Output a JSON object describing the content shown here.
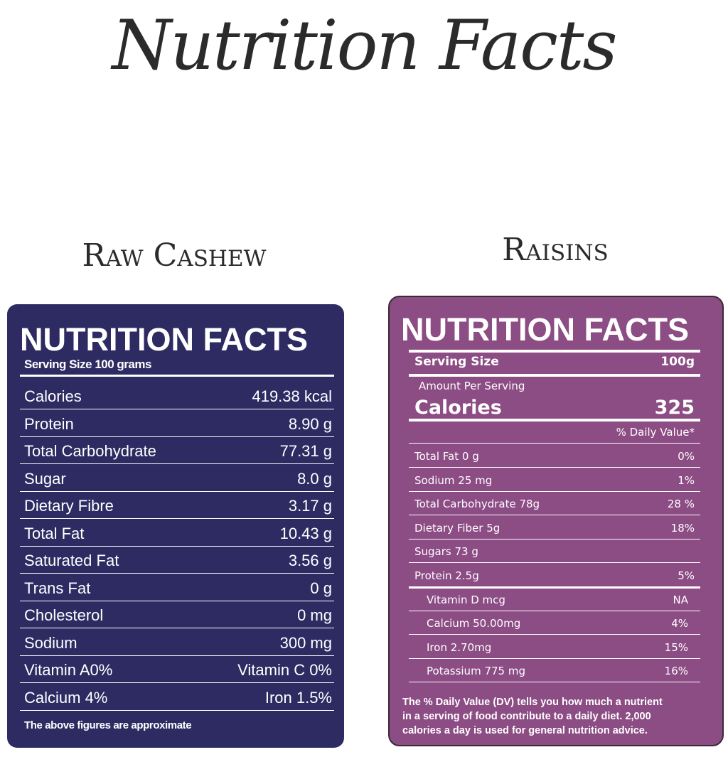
{
  "title": "Nutrition Facts",
  "panels": [
    {
      "name": "Raw Cashew",
      "heading": "NUTRITION FACTS",
      "serving": "Serving Size 100 grams",
      "rows": [
        [
          "Calories",
          "419.38 kcal"
        ],
        [
          "Protein",
          "8.90 g"
        ],
        [
          "Total Carbohydrate",
          "77.31 g"
        ],
        [
          "Sugar",
          "8.0 g"
        ],
        [
          "Dietary Fibre",
          "3.17 g"
        ],
        [
          "Total Fat",
          "10.43 g"
        ],
        [
          "Saturated Fat",
          "3.56 g"
        ],
        [
          "Trans Fat",
          "0 g"
        ],
        [
          "Cholesterol",
          "0 mg"
        ],
        [
          "Sodium",
          "300 mg"
        ],
        [
          "Vitamin A0%",
          "Vitamin C 0%"
        ],
        [
          "Calcium 4%",
          "Iron 1.5%"
        ]
      ],
      "footer": "The above figures are approximate"
    },
    {
      "name": "Raisins",
      "heading": "NUTRITION FACTS",
      "serving_label": "Serving Size",
      "serving_value": "100g",
      "amount_per_serving": "Amount Per Serving",
      "calories_label": "Calories",
      "calories_value": "325",
      "daily_value_header": "% Daily Value*",
      "rows": [
        [
          "Total Fat 0 g",
          "0%"
        ],
        [
          "Sodium 25 mg",
          "1%"
        ],
        [
          "Total Carbohydrate  78g",
          "28 %"
        ],
        [
          "Dietary Fiber 5g",
          "18%"
        ],
        [
          "Sugars  73 g"
        ],
        [
          "Protein   2.5g",
          "5%"
        ],
        [
          "Vitamin D mcg",
          "NA"
        ],
        [
          "Calcium 50.00mg",
          "4%"
        ],
        [
          "Iron 2.70mg",
          "15%"
        ],
        [
          "Potassium 775 mg",
          "16%"
        ]
      ],
      "footer": [
        "The % Daily Value (DV) tells you how much a nutrient",
        "in a serving of food contribute to a daily diet. 2,000",
        "calories a day is used for general nutrition advice."
      ]
    }
  ]
}
